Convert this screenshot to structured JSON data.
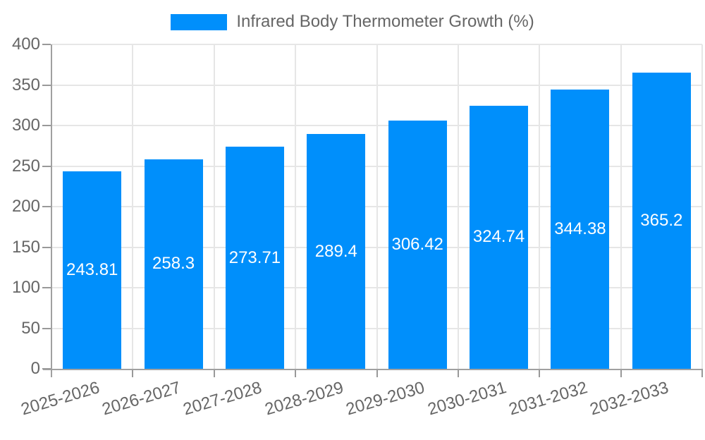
{
  "chart_data": {
    "type": "bar",
    "title": "Infrared Body Thermometer Growth (%)",
    "legend_position": "top",
    "categories": [
      "2025-2026",
      "2026-2027",
      "2027-2028",
      "2028-2029",
      "2029-2030",
      "2030-2031",
      "2031-2032",
      "2032-2033"
    ],
    "values": [
      243.81,
      258.3,
      273.71,
      289.4,
      306.42,
      324.74,
      344.38,
      365.2
    ],
    "value_labels": [
      "243.81",
      "258.3",
      "273.71",
      "289.4",
      "306.42",
      "324.74",
      "344.38",
      "365.2"
    ],
    "xlabel": "",
    "ylabel": "",
    "ylim": [
      0,
      400
    ],
    "yticks": [
      0,
      50,
      100,
      150,
      200,
      250,
      300,
      350,
      400
    ],
    "grid": true
  },
  "legend": {
    "label": "Infrared Body Thermometer Growth (%)"
  },
  "colors": {
    "bar": "#008FFB",
    "axis_text": "#666666",
    "grid_line": "#e6e6e6",
    "axis_line": "#a0a0a0",
    "tick": "#999999",
    "value_label": "#ffffff",
    "background": "#ffffff"
  }
}
